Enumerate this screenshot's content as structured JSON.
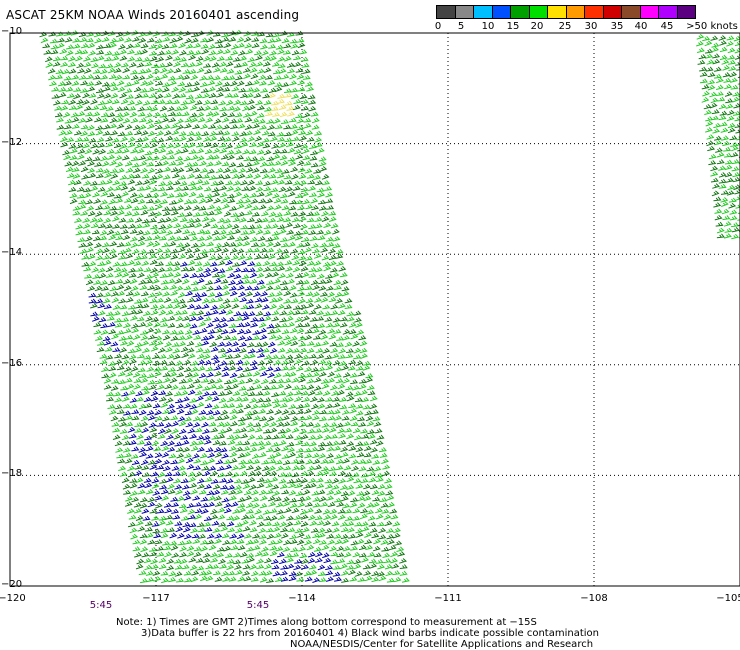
{
  "title": "ASCAT 25KM NOAA Winds 20160401 ascending",
  "colorbar": {
    "ticks": [
      "0",
      "5",
      "10",
      "15",
      "20",
      "25",
      "30",
      "35",
      "40",
      "45",
      ">50 knots"
    ],
    "colors": [
      "#444444",
      "#888888",
      "#00bfff",
      "#0050ff",
      "#00a000",
      "#00e000",
      "#ffe000",
      "#ff9a00",
      "#ff3000",
      "#d00000",
      "#8a4a2a",
      "#ff00ff",
      "#b000ff",
      "#5a0080"
    ]
  },
  "map": {
    "lon_ticks": [
      "−120",
      "−117",
      "−114",
      "−111",
      "−108",
      "−105"
    ],
    "lat_ticks": [
      "−10",
      "−12",
      "−14",
      "−16",
      "−18",
      "−20"
    ],
    "lon_range": [
      -120,
      -105
    ],
    "lat_range": [
      -20,
      -10
    ],
    "swath_colors": {
      "light_green": "#22cc22",
      "dark_green": "#117711",
      "blue": "#0000aa",
      "yellow": "#f0e060"
    }
  },
  "times": [
    "5:45",
    "5:45"
  ],
  "notes": [
    "Note: 1) Times are GMT 2)Times along bottom correspond to measurement at −15S",
    "3)Data buffer is 22 hrs from 20160401 4) Black wind barbs indicate possible contamination",
    "NOAA/NESDIS/Center for Satellite Applications and Research"
  ]
}
